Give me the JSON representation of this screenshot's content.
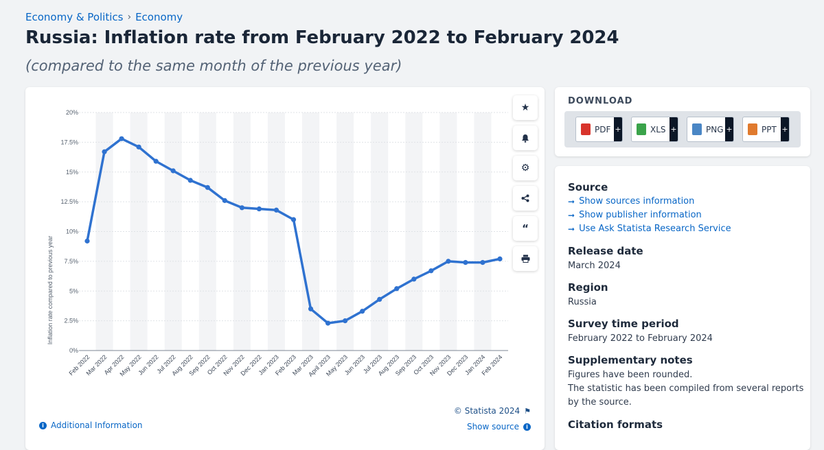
{
  "breadcrumb": {
    "item1": "Economy & Politics",
    "separator": "›",
    "item2": "Economy"
  },
  "title": "Russia: Inflation rate from February 2022 to February 2024",
  "subtitle": "(compared to the same month of the previous year)",
  "toolbar": {
    "icons": [
      "star-icon",
      "bell-icon",
      "gear-icon",
      "share-icon",
      "quote-icon",
      "print-icon"
    ]
  },
  "chart_data": {
    "type": "line",
    "ylabel": "Inflation rate compared to previous year",
    "xlabel": "",
    "ylim": [
      0,
      20
    ],
    "yticks": [
      "0%",
      "2.5%",
      "5%",
      "7.5%",
      "10%",
      "12.5%",
      "15%",
      "17.5%",
      "20%"
    ],
    "categories": [
      "Feb 2022",
      "Mar 2022",
      "Apr 2022",
      "May 2022",
      "Jun 2022",
      "Jul 2022",
      "Aug 2022",
      "Sep 2022",
      "Oct 2022",
      "Nov 2022",
      "Dec 2022",
      "Jan 2023",
      "Feb 2023",
      "Mar 2023",
      "April 2023",
      "May 2023",
      "Jun 2023",
      "Jul 2023",
      "Aug 2023",
      "Sep 2023",
      "Oct 2023",
      "Nov 2023",
      "Dec 2023",
      "Jan 2024",
      "Feb 2024"
    ],
    "values": [
      9.2,
      16.7,
      17.8,
      17.1,
      15.9,
      15.1,
      14.3,
      13.7,
      12.6,
      12.0,
      11.9,
      11.8,
      11.0,
      3.5,
      2.3,
      2.5,
      3.3,
      4.3,
      5.2,
      6.0,
      6.7,
      7.5,
      7.4,
      7.4,
      7.7
    ],
    "grid": true,
    "color": "#2f72d0"
  },
  "credit": "© Statista 2024",
  "additional_info": "Additional Information",
  "show_source": "Show source",
  "download": {
    "title": "DOWNLOAD",
    "buttons": [
      {
        "label": "PDF",
        "plus": "+",
        "color": "#d8342c"
      },
      {
        "label": "XLS",
        "plus": "+",
        "color": "#3aa34a"
      },
      {
        "label": "PNG",
        "plus": "+",
        "color": "#4a86c5"
      },
      {
        "label": "PPT",
        "plus": "+",
        "color": "#e07a2e"
      }
    ]
  },
  "info": {
    "source_heading": "Source",
    "links": [
      "Show sources information",
      "Show publisher information",
      "Use Ask Statista Research Service"
    ],
    "release_heading": "Release date",
    "release_value": "March 2024",
    "region_heading": "Region",
    "region_value": "Russia",
    "survey_heading": "Survey time period",
    "survey_value": "February 2022 to February 2024",
    "notes_heading": "Supplementary notes",
    "notes_line1": "Figures have been rounded.",
    "notes_line2": "The statistic has been compiled from several reports",
    "notes_line3": "by the source.",
    "citation_heading": "Citation formats"
  }
}
